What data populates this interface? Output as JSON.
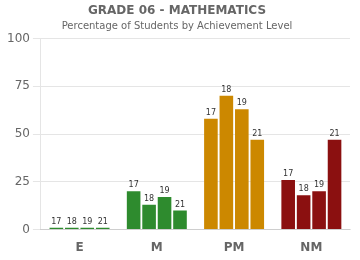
{
  "chart_data": {
    "type": "bar",
    "title": "GRADE 06 - MATHEMATICS",
    "subtitle": "Percentage of Students by Achievement Level",
    "categories": [
      "E",
      "M",
      "PM",
      "NM"
    ],
    "series": [
      {
        "name": "17",
        "values": [
          1,
          20,
          58,
          26
        ],
        "colors": [
          "#2e8b2e",
          "#2e8b2e",
          "#cc8800",
          "#8b1010"
        ]
      },
      {
        "name": "18",
        "values": [
          1,
          13,
          70,
          18
        ],
        "colors": [
          "#2e8b2e",
          "#2e8b2e",
          "#cc8800",
          "#8b1010"
        ]
      },
      {
        "name": "19",
        "values": [
          1,
          17,
          63,
          20
        ],
        "colors": [
          "#2e8b2e",
          "#2e8b2e",
          "#cc8800",
          "#8b1010"
        ]
      },
      {
        "name": "21",
        "values": [
          1,
          10,
          47,
          47
        ],
        "colors": [
          "#2e8b2e",
          "#2e8b2e",
          "#cc8800",
          "#8b1010"
        ]
      }
    ],
    "ylim": [
      0,
      100
    ],
    "yticks": [
      0,
      25,
      50,
      75,
      100
    ],
    "grid": true
  }
}
